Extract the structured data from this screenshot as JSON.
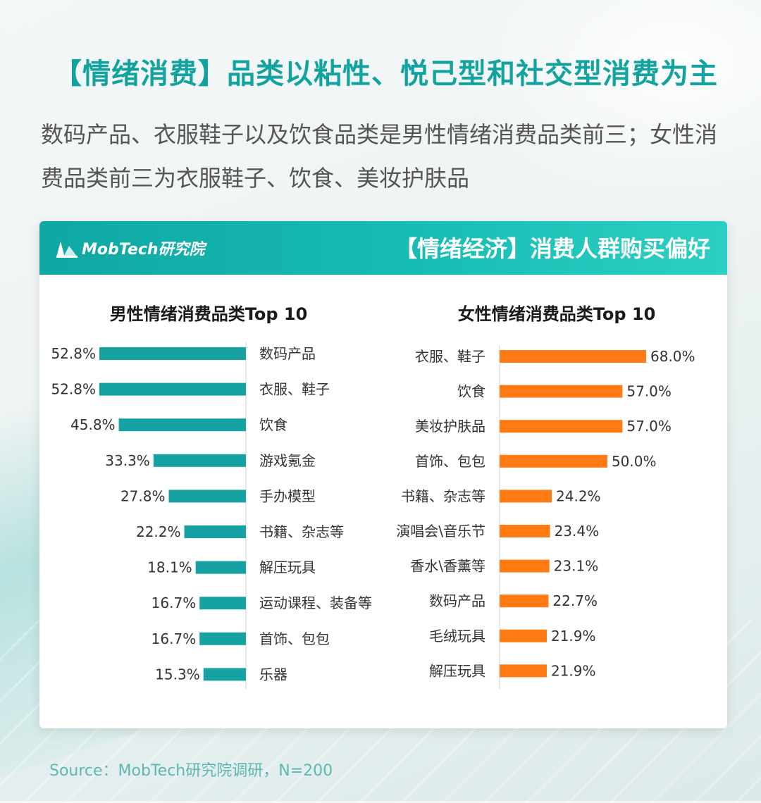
{
  "headline": "【情绪消费】品类以粘性、悦己型和社交型消费为主",
  "subtext": "数码产品、衣服鞋子以及饮食品类是男性情绪消费品类前三；女性消费品类前三为衣服鞋子、饮食、美妆护肤品",
  "card": {
    "logo": "MobTech研究院",
    "title": "【情绪经济】消费人群购买偏好"
  },
  "colors": {
    "male": "#16a2a3",
    "female": "#ff7a12",
    "accent": "#12a3a0"
  },
  "chart_data": [
    {
      "type": "bar",
      "orientation": "horizontal",
      "title": "男性情绪消费品类Top 10",
      "categories": [
        "数码产品",
        "衣服、鞋子",
        "饮食",
        "游戏氪金",
        "手办模型",
        "书籍、杂志等",
        "解压玩具",
        "运动课程、装备等",
        "首饰、包包",
        "乐器"
      ],
      "values": [
        52.8,
        52.8,
        45.8,
        33.3,
        27.8,
        22.2,
        18.1,
        16.7,
        16.7,
        15.3
      ],
      "value_labels": [
        "52.8%",
        "52.8%",
        "45.8%",
        "33.3%",
        "27.8%",
        "22.2%",
        "18.1%",
        "16.7%",
        "16.7%",
        "15.3%"
      ],
      "unit": "%",
      "color": "#16a2a3",
      "direction": "right-to-left"
    },
    {
      "type": "bar",
      "orientation": "horizontal",
      "title": "女性情绪消费品类Top 10",
      "categories": [
        "衣服、鞋子",
        "饮食",
        "美妆护肤品",
        "首饰、包包",
        "书籍、杂志等",
        "演唱会\\音乐节",
        "香水\\香薰等",
        "数码产品",
        "毛绒玩具",
        "解压玩具"
      ],
      "values": [
        68.0,
        57.0,
        57.0,
        50.0,
        24.2,
        23.4,
        23.1,
        22.7,
        21.9,
        21.9
      ],
      "value_labels": [
        "68.0%",
        "57.0%",
        "57.0%",
        "50.0%",
        "24.2%",
        "23.4%",
        "23.1%",
        "22.7%",
        "21.9%",
        "21.9%"
      ],
      "unit": "%",
      "color": "#ff7a12",
      "direction": "left-to-right"
    }
  ],
  "source": "Source：MobTech研究院调研，N=200"
}
